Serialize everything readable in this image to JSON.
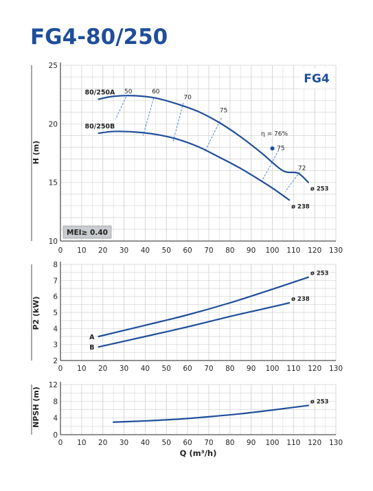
{
  "title": "FG4-80/250",
  "chart_data": [
    {
      "type": "line",
      "badge": "FG4",
      "mei_label": "MEI≥ 0.40",
      "xlabel": "",
      "ylabel": "H (m)",
      "xlim": [
        0,
        130
      ],
      "ylim": [
        10,
        25
      ],
      "x_ticks": [
        0,
        10,
        20,
        30,
        40,
        50,
        60,
        70,
        80,
        90,
        100,
        110,
        120,
        130
      ],
      "y_ticks": [
        10,
        15,
        20,
        25
      ],
      "grid": true,
      "series": [
        {
          "name": "80/250A",
          "end_label": "ø 253",
          "points": [
            [
              18,
              22.1
            ],
            [
              25,
              22.35
            ],
            [
              35,
              22.4
            ],
            [
              45,
              22.2
            ],
            [
              55,
              21.7
            ],
            [
              65,
              21.05
            ],
            [
              75,
              20.1
            ],
            [
              85,
              18.9
            ],
            [
              95,
              17.5
            ],
            [
              105,
              16.0
            ],
            [
              112,
              15.8
            ],
            [
              117,
              15.0
            ]
          ]
        },
        {
          "name": "80/250B",
          "end_label": "ø 238",
          "points": [
            [
              18,
              19.2
            ],
            [
              25,
              19.35
            ],
            [
              35,
              19.3
            ],
            [
              45,
              19.1
            ],
            [
              55,
              18.7
            ],
            [
              65,
              18.05
            ],
            [
              75,
              17.15
            ],
            [
              85,
              16.2
            ],
            [
              95,
              15.1
            ],
            [
              101,
              14.4
            ],
            [
              108,
              13.5
            ]
          ]
        }
      ],
      "efficiency_labels": [
        {
          "label": "50",
          "x": 32,
          "y": 22.6
        },
        {
          "label": "60",
          "x": 45,
          "y": 22.6
        },
        {
          "label": "70",
          "x": 60,
          "y": 22.1
        },
        {
          "label": "75",
          "x": 77,
          "y": 21.0
        },
        {
          "label": "η = 76%",
          "x": 101,
          "y": 19.0
        },
        {
          "label": "75",
          "x": 104,
          "y": 17.75
        },
        {
          "label": "72",
          "x": 114,
          "y": 16.05
        }
      ],
      "efficiency_lines": [
        [
          [
            31,
            22.3
          ],
          [
            26,
            20.4
          ]
        ],
        [
          [
            44,
            22.2
          ],
          [
            39,
            19.0
          ]
        ],
        [
          [
            58,
            21.8
          ],
          [
            53,
            18.4
          ]
        ],
        [
          [
            76,
            20.5
          ],
          [
            68,
            17.6
          ]
        ],
        [
          [
            103,
            17.75
          ],
          [
            95,
            15.1
          ]
        ],
        [
          [
            113,
            15.9
          ],
          [
            106,
            14.2
          ]
        ]
      ],
      "bep_point": [
        100,
        17.9
      ]
    },
    {
      "type": "line",
      "xlabel": "",
      "ylabel": "P2 (kW)",
      "xlim": [
        0,
        130
      ],
      "ylim": [
        2,
        8
      ],
      "x_ticks": [
        0,
        10,
        20,
        30,
        40,
        50,
        60,
        70,
        80,
        90,
        100,
        110,
        120,
        130
      ],
      "y_ticks": [
        2,
        3,
        4,
        5,
        6,
        7,
        8
      ],
      "grid": true,
      "series": [
        {
          "name": "A",
          "end_label": "ø 253",
          "points": [
            [
              18,
              3.5
            ],
            [
              40,
              4.2
            ],
            [
              60,
              4.85
            ],
            [
              80,
              5.6
            ],
            [
              100,
              6.45
            ],
            [
              117,
              7.2
            ]
          ]
        },
        {
          "name": "B",
          "end_label": "ø 238",
          "points": [
            [
              18,
              2.85
            ],
            [
              40,
              3.5
            ],
            [
              60,
              4.1
            ],
            [
              80,
              4.75
            ],
            [
              100,
              5.35
            ],
            [
              108,
              5.6
            ]
          ]
        }
      ]
    },
    {
      "type": "line",
      "xlabel": "Q (m³/h)",
      "ylabel": "NPSH (m)",
      "xlim": [
        0,
        130
      ],
      "ylim": [
        0,
        12
      ],
      "x_ticks": [
        0,
        10,
        20,
        30,
        40,
        50,
        60,
        70,
        80,
        90,
        100,
        110,
        120,
        130
      ],
      "y_ticks": [
        0,
        4,
        8,
        12
      ],
      "grid": true,
      "series": [
        {
          "name": "",
          "end_label": "ø 253",
          "points": [
            [
              25,
              3.0
            ],
            [
              40,
              3.3
            ],
            [
              55,
              3.7
            ],
            [
              70,
              4.3
            ],
            [
              85,
              5.0
            ],
            [
              100,
              5.9
            ],
            [
              117,
              7.0
            ]
          ]
        }
      ]
    }
  ]
}
